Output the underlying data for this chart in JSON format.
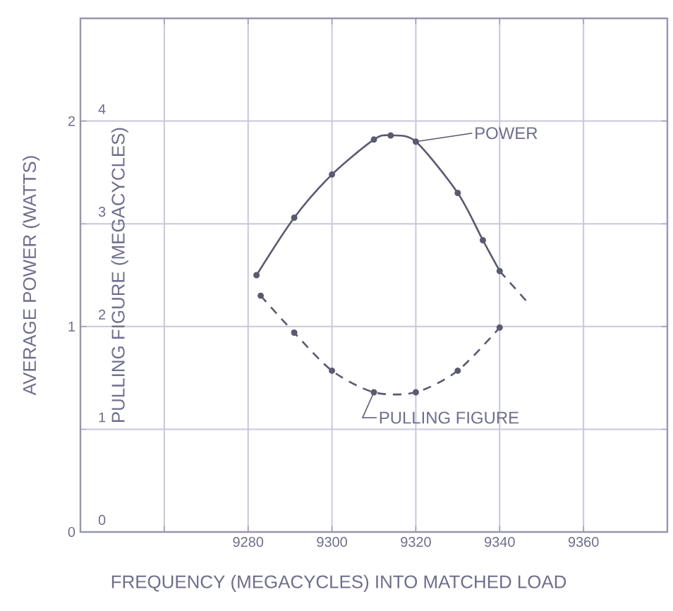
{
  "chart_data": {
    "type": "line",
    "xlabel": "FREQUENCY (MEGACYCLES) INTO MATCHED LOAD",
    "ylabel": "AVERAGE POWER (WATTS)",
    "y2label": "PULLING FIGURE (MEGACYCLES)",
    "xlim": [
      9240,
      9380
    ],
    "xticks": [
      {
        "value": 9260,
        "label": null
      },
      9280,
      9300,
      9320,
      9340,
      9360
    ],
    "ylim": [
      0,
      2.5
    ],
    "yticks": [
      0,
      1,
      2
    ],
    "y2lim": [
      0,
      5
    ],
    "y2ticks": [
      0,
      1,
      2,
      3,
      4
    ],
    "grid": true,
    "series": [
      {
        "name": "POWER",
        "color": "#5a5a70",
        "marker": "circle",
        "line_style": "solid",
        "x": [
          9282,
          9291,
          9300,
          9310,
          9314,
          9320,
          9330,
          9336,
          9340
        ],
        "values": [
          1.25,
          1.53,
          1.74,
          1.91,
          1.93,
          1.9,
          1.65,
          1.42,
          1.27
        ]
      },
      {
        "color": "#5a5a70",
        "marker": "none",
        "line_style": "dashed",
        "x": [
          9340,
          9347
        ],
        "values": [
          1.27,
          1.11
        ]
      },
      {
        "name": "PULLING FIGURE",
        "color": "#5a5a70",
        "marker": "circle",
        "line_style": "dashed",
        "axis": "y2",
        "x": [
          9283,
          9291,
          9300,
          9310,
          9320,
          9330,
          9340
        ],
        "values": [
          2.3,
          1.94,
          1.57,
          1.36,
          1.36,
          1.57,
          1.99
        ]
      }
    ]
  }
}
